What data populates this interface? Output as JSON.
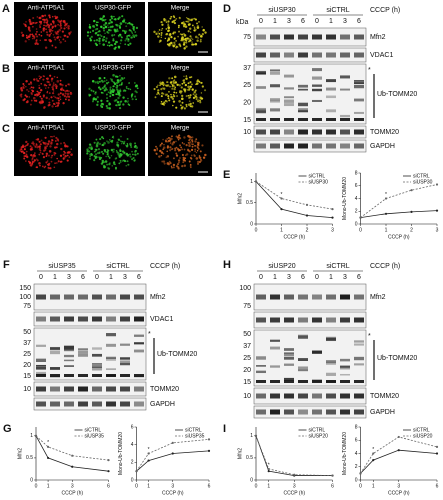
{
  "imaging": [
    {
      "label": "A",
      "images": [
        {
          "title": "Anti-ATP5A1",
          "color": "#e02020"
        },
        {
          "title": "USP30-GFP",
          "color": "#30d030"
        },
        {
          "title": "Merge",
          "color": "#d8d020"
        }
      ]
    },
    {
      "label": "B",
      "images": [
        {
          "title": "Anti-ATP5A1",
          "color": "#e02020"
        },
        {
          "title": "s-USP35-GFP",
          "color": "#30d030"
        },
        {
          "title": "Merge",
          "color": "#d8d020"
        }
      ]
    },
    {
      "label": "C",
      "images": [
        {
          "title": "Anti-ATP5A1",
          "color": "#e02020"
        },
        {
          "title": "USP20-GFP",
          "color": "#30c030"
        },
        {
          "title": "Merge",
          "color": "#c86020"
        }
      ]
    }
  ],
  "blots": [
    {
      "label": "D",
      "kda": "kDa",
      "treatment": "CCCP (h)",
      "groups": [
        {
          "name": "siUSP30"
        },
        {
          "name": "siCTRL"
        }
      ],
      "times": [
        "0",
        "1",
        "3",
        "6"
      ],
      "rows": [
        {
          "label": "Mfn2",
          "markers": [
            "75"
          ]
        },
        {
          "label": "VDAC1",
          "markers": []
        },
        {
          "label": "Ub-TOMM20",
          "asterisk": "*",
          "markers": [
            "37",
            "25",
            "20",
            "15"
          ]
        },
        {
          "label": "TOMM20",
          "markers": [
            "10"
          ]
        },
        {
          "label": "GAPDH",
          "markers": []
        }
      ]
    },
    {
      "label": "F",
      "treatment": "CCCP (h)",
      "groups": [
        {
          "name": "siUSP35"
        },
        {
          "name": "siCTRL"
        }
      ],
      "times": [
        "0",
        "1",
        "3",
        "6"
      ],
      "rows": [
        {
          "label": "Mfn2",
          "markers": [
            "150",
            "100",
            "75"
          ]
        },
        {
          "label": "VDAC1",
          "markers": []
        },
        {
          "label": "Ub-TOMM20",
          "asterisk": "*",
          "markers": [
            "50",
            "37",
            "25",
            "20",
            "15"
          ]
        },
        {
          "label": "TOMM20",
          "markers": [
            "10"
          ]
        },
        {
          "label": "GAPDH",
          "markers": []
        }
      ]
    },
    {
      "label": "H",
      "treatment": "CCCP (h)",
      "groups": [
        {
          "name": "siUSP20"
        },
        {
          "name": "siCTRL"
        }
      ],
      "times": [
        "0",
        "1",
        "3",
        "6"
      ],
      "rows": [
        {
          "label": "Mfn2",
          "markers": [
            "100",
            "75"
          ]
        },
        {
          "markers": []
        },
        {
          "label": "Ub-TOMM20",
          "asterisk": "*",
          "markers": [
            "50",
            "37",
            "25",
            "20",
            "15"
          ]
        },
        {
          "label": "TOMM20",
          "markers": [
            "10"
          ]
        },
        {
          "label": "GAPDH",
          "markers": []
        }
      ]
    }
  ],
  "plots": [
    {
      "label": "E",
      "charts": [
        {
          "ylabel": "Mfn2",
          "xlabel": "CCCP (h)",
          "annotation": "*",
          "x": [
            0,
            1,
            2,
            3
          ],
          "xlim": [
            0,
            3
          ],
          "xticks": [
            0,
            1,
            2,
            3
          ],
          "ylim": [
            0,
            1.2
          ],
          "yticks": [
            0,
            0.5,
            1
          ],
          "series": [
            {
              "name": "siCTRL",
              "color": "#222222",
              "values": [
                1,
                0.35,
                0.2,
                0.15
              ]
            },
            {
              "name": "siUSP30",
              "color": "#666666",
              "values": [
                1,
                0.6,
                0.45,
                0.35
              ]
            }
          ]
        },
        {
          "ylabel": "Mono-Ub-TOMM20",
          "xlabel": "CCCP (h)",
          "annotation": "*",
          "x": [
            0,
            1,
            2,
            3
          ],
          "xlim": [
            0,
            3
          ],
          "xticks": [
            0,
            1,
            2,
            3
          ],
          "ylim": [
            0,
            8
          ],
          "yticks": [
            0,
            2,
            4,
            6,
            8
          ],
          "series": [
            {
              "name": "siCTRL",
              "color": "#222222",
              "values": [
                1,
                1.6,
                1.9,
                2.1
              ]
            },
            {
              "name": "siUSP30",
              "color": "#666666",
              "values": [
                1,
                4,
                5.3,
                6.2
              ]
            }
          ]
        }
      ]
    },
    {
      "label": "G",
      "charts": [
        {
          "ylabel": "Mfn2",
          "xlabel": "CCCP (h)",
          "annotation": "*",
          "x": [
            0,
            1,
            3,
            6
          ],
          "xlim": [
            0,
            6
          ],
          "xticks": [
            0,
            1,
            3,
            6
          ],
          "ylim": [
            0,
            1.2
          ],
          "yticks": [
            0,
            0.5,
            1
          ],
          "series": [
            {
              "name": "siCTRL",
              "color": "#222222",
              "values": [
                1,
                0.5,
                0.3,
                0.2
              ]
            },
            {
              "name": "siUSP35",
              "color": "#666666",
              "values": [
                1,
                0.75,
                0.55,
                0.45
              ]
            }
          ]
        },
        {
          "ylabel": "Mono-Ub-TOMM20",
          "xlabel": "CCCP (h)",
          "annotation": "*",
          "x": [
            0,
            1,
            3,
            6
          ],
          "xlim": [
            0,
            6
          ],
          "xticks": [
            0,
            1,
            3,
            6
          ],
          "ylim": [
            0,
            6
          ],
          "yticks": [
            0,
            2,
            4,
            6
          ],
          "series": [
            {
              "name": "siCTRL",
              "color": "#222222",
              "values": [
                1,
                2.2,
                3,
                3.3
              ]
            },
            {
              "name": "siUSP35",
              "color": "#666666",
              "values": [
                1,
                3,
                4.2,
                4.6
              ]
            }
          ]
        }
      ]
    },
    {
      "label": "I",
      "charts": [
        {
          "ylabel": "Mfn2",
          "xlabel": "CCCP (h)",
          "annotation": "*",
          "x": [
            0,
            1,
            3,
            6
          ],
          "xlim": [
            0,
            6
          ],
          "xticks": [
            0,
            1,
            3,
            6
          ],
          "ylim": [
            0,
            1.2
          ],
          "yticks": [
            0,
            0.5,
            1
          ],
          "series": [
            {
              "name": "siCTRL",
              "color": "#222222",
              "values": [
                1,
                0.2,
                0.1,
                0.1
              ]
            },
            {
              "name": "siUSP20",
              "color": "#666666",
              "values": [
                1,
                0.25,
                0.12,
                0.1
              ]
            }
          ]
        },
        {
          "ylabel": "Mono-Ub-TOMM20",
          "xlabel": "CCCP (h)",
          "annotation": "*",
          "x": [
            0,
            1,
            3,
            6
          ],
          "xlim": [
            0,
            6
          ],
          "xticks": [
            0,
            1,
            3,
            6
          ],
          "ylim": [
            0,
            8
          ],
          "yticks": [
            0,
            2,
            4,
            6,
            8
          ],
          "series": [
            {
              "name": "siCTRL",
              "color": "#222222",
              "values": [
                1,
                3,
                4.5,
                4
              ]
            },
            {
              "name": "siUSP20",
              "color": "#666666",
              "values": [
                1,
                4,
                6.5,
                5
              ]
            }
          ]
        }
      ]
    }
  ]
}
